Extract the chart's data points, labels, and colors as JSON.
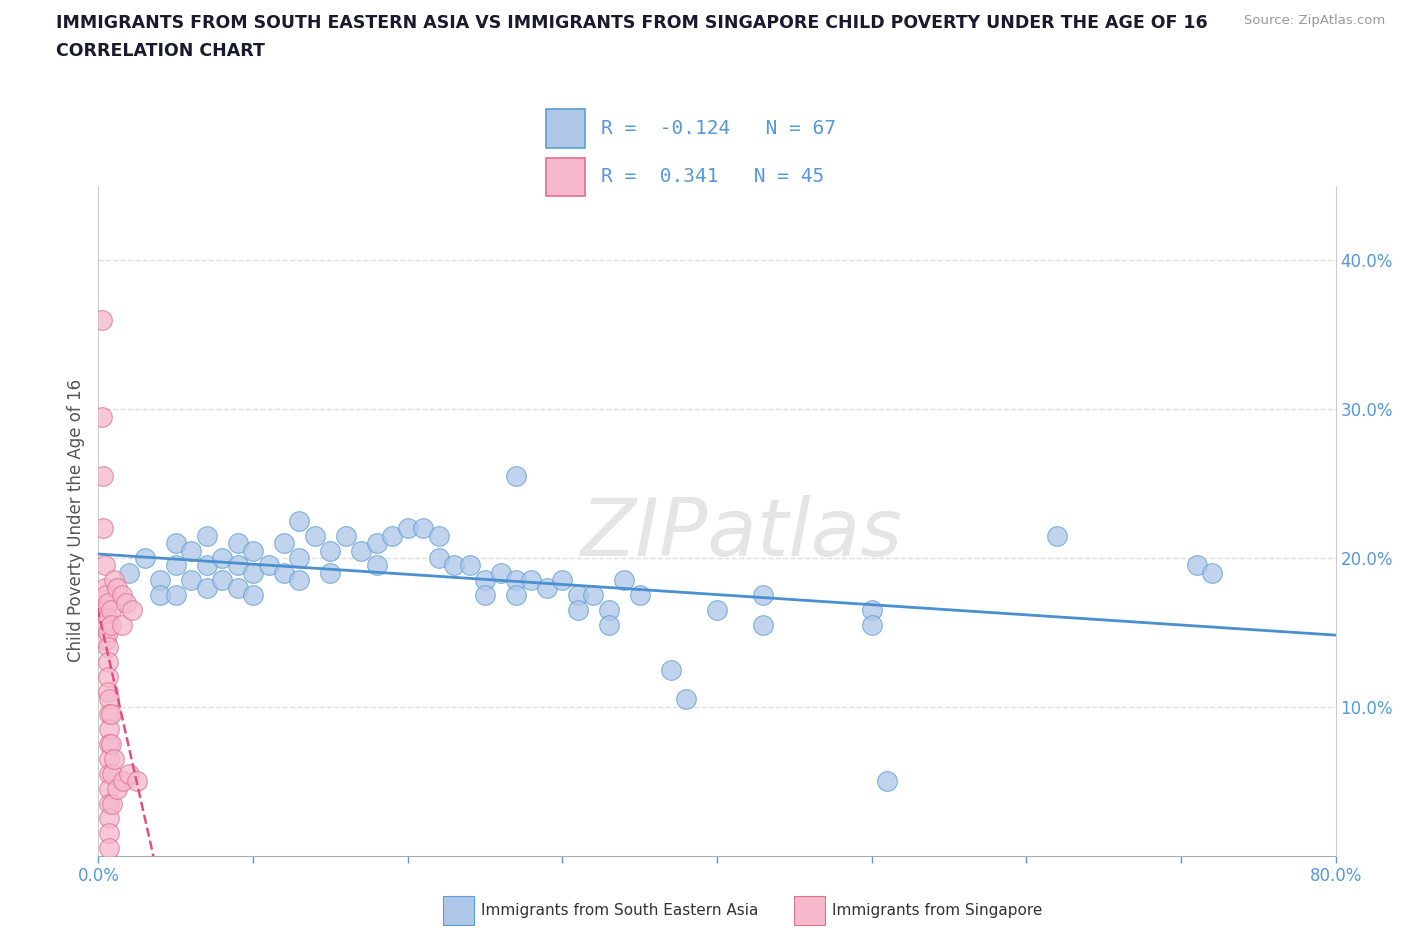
{
  "title_line1": "IMMIGRANTS FROM SOUTH EASTERN ASIA VS IMMIGRANTS FROM SINGAPORE CHILD POVERTY UNDER THE AGE OF 16",
  "title_line2": "CORRELATION CHART",
  "source": "Source: ZipAtlas.com",
  "xlabel_blue": "Immigrants from South Eastern Asia",
  "xlabel_pink": "Immigrants from Singapore",
  "ylabel": "Child Poverty Under the Age of 16",
  "xlim": [
    0.0,
    0.8
  ],
  "ylim": [
    0.0,
    0.45
  ],
  "xticks": [
    0.0,
    0.1,
    0.2,
    0.3,
    0.4,
    0.5,
    0.6,
    0.7,
    0.8
  ],
  "xticklabels_edge": {
    "0.0": "0.0%",
    "0.8": "80.0%"
  },
  "yticks_right": [
    0.1,
    0.2,
    0.3,
    0.4
  ],
  "yticklabels_right": [
    "10.0%",
    "20.0%",
    "30.0%",
    "40.0%"
  ],
  "blue_color": "#aec6e8",
  "blue_edge_color": "#5a9fd4",
  "blue_line_color": "#4a8fd0",
  "pink_color": "#f5b8cc",
  "pink_edge_color": "#e07090",
  "pink_line_color": "#e05080",
  "R_blue": -0.124,
  "N_blue": 67,
  "R_pink": 0.341,
  "N_pink": 45,
  "blue_scatter": [
    [
      0.02,
      0.19
    ],
    [
      0.03,
      0.2
    ],
    [
      0.04,
      0.185
    ],
    [
      0.04,
      0.175
    ],
    [
      0.05,
      0.21
    ],
    [
      0.05,
      0.195
    ],
    [
      0.05,
      0.175
    ],
    [
      0.06,
      0.205
    ],
    [
      0.06,
      0.185
    ],
    [
      0.07,
      0.215
    ],
    [
      0.07,
      0.195
    ],
    [
      0.07,
      0.18
    ],
    [
      0.08,
      0.2
    ],
    [
      0.08,
      0.185
    ],
    [
      0.09,
      0.21
    ],
    [
      0.09,
      0.195
    ],
    [
      0.09,
      0.18
    ],
    [
      0.1,
      0.205
    ],
    [
      0.1,
      0.19
    ],
    [
      0.1,
      0.175
    ],
    [
      0.11,
      0.195
    ],
    [
      0.12,
      0.21
    ],
    [
      0.12,
      0.19
    ],
    [
      0.13,
      0.225
    ],
    [
      0.13,
      0.2
    ],
    [
      0.13,
      0.185
    ],
    [
      0.14,
      0.215
    ],
    [
      0.15,
      0.205
    ],
    [
      0.15,
      0.19
    ],
    [
      0.16,
      0.215
    ],
    [
      0.17,
      0.205
    ],
    [
      0.18,
      0.21
    ],
    [
      0.18,
      0.195
    ],
    [
      0.19,
      0.215
    ],
    [
      0.2,
      0.22
    ],
    [
      0.21,
      0.22
    ],
    [
      0.22,
      0.215
    ],
    [
      0.22,
      0.2
    ],
    [
      0.23,
      0.195
    ],
    [
      0.24,
      0.195
    ],
    [
      0.25,
      0.185
    ],
    [
      0.25,
      0.175
    ],
    [
      0.26,
      0.19
    ],
    [
      0.27,
      0.185
    ],
    [
      0.27,
      0.175
    ],
    [
      0.28,
      0.185
    ],
    [
      0.29,
      0.18
    ],
    [
      0.3,
      0.185
    ],
    [
      0.31,
      0.175
    ],
    [
      0.31,
      0.165
    ],
    [
      0.32,
      0.175
    ],
    [
      0.33,
      0.165
    ],
    [
      0.33,
      0.155
    ],
    [
      0.34,
      0.185
    ],
    [
      0.35,
      0.175
    ],
    [
      0.27,
      0.255
    ],
    [
      0.37,
      0.125
    ],
    [
      0.38,
      0.105
    ],
    [
      0.4,
      0.165
    ],
    [
      0.43,
      0.155
    ],
    [
      0.43,
      0.175
    ],
    [
      0.5,
      0.165
    ],
    [
      0.5,
      0.155
    ],
    [
      0.51,
      0.05
    ],
    [
      0.62,
      0.215
    ],
    [
      0.71,
      0.195
    ],
    [
      0.72,
      0.19
    ]
  ],
  "pink_scatter": [
    [
      0.002,
      0.36
    ],
    [
      0.002,
      0.295
    ],
    [
      0.003,
      0.255
    ],
    [
      0.003,
      0.22
    ],
    [
      0.004,
      0.195
    ],
    [
      0.004,
      0.18
    ],
    [
      0.005,
      0.175
    ],
    [
      0.005,
      0.165
    ],
    [
      0.005,
      0.155
    ],
    [
      0.005,
      0.145
    ],
    [
      0.006,
      0.17
    ],
    [
      0.006,
      0.16
    ],
    [
      0.006,
      0.15
    ],
    [
      0.006,
      0.14
    ],
    [
      0.006,
      0.13
    ],
    [
      0.006,
      0.12
    ],
    [
      0.006,
      0.11
    ],
    [
      0.007,
      0.105
    ],
    [
      0.007,
      0.095
    ],
    [
      0.007,
      0.085
    ],
    [
      0.007,
      0.075
    ],
    [
      0.007,
      0.065
    ],
    [
      0.007,
      0.055
    ],
    [
      0.007,
      0.045
    ],
    [
      0.007,
      0.035
    ],
    [
      0.007,
      0.025
    ],
    [
      0.007,
      0.015
    ],
    [
      0.007,
      0.005
    ],
    [
      0.008,
      0.165
    ],
    [
      0.008,
      0.155
    ],
    [
      0.008,
      0.095
    ],
    [
      0.008,
      0.075
    ],
    [
      0.009,
      0.055
    ],
    [
      0.009,
      0.035
    ],
    [
      0.01,
      0.185
    ],
    [
      0.01,
      0.065
    ],
    [
      0.012,
      0.18
    ],
    [
      0.012,
      0.045
    ],
    [
      0.015,
      0.175
    ],
    [
      0.015,
      0.155
    ],
    [
      0.016,
      0.05
    ],
    [
      0.018,
      0.17
    ],
    [
      0.02,
      0.055
    ],
    [
      0.022,
      0.165
    ],
    [
      0.025,
      0.05
    ]
  ],
  "background_color": "#ffffff",
  "grid_color": "#dddddd",
  "watermark": "ZIPatlas",
  "title_color": "#1a1a2e",
  "axis_label_color": "#555555",
  "tick_color": "#5599dd",
  "legend_box_color": "#f8f8f8",
  "legend_border_color": "#cccccc"
}
